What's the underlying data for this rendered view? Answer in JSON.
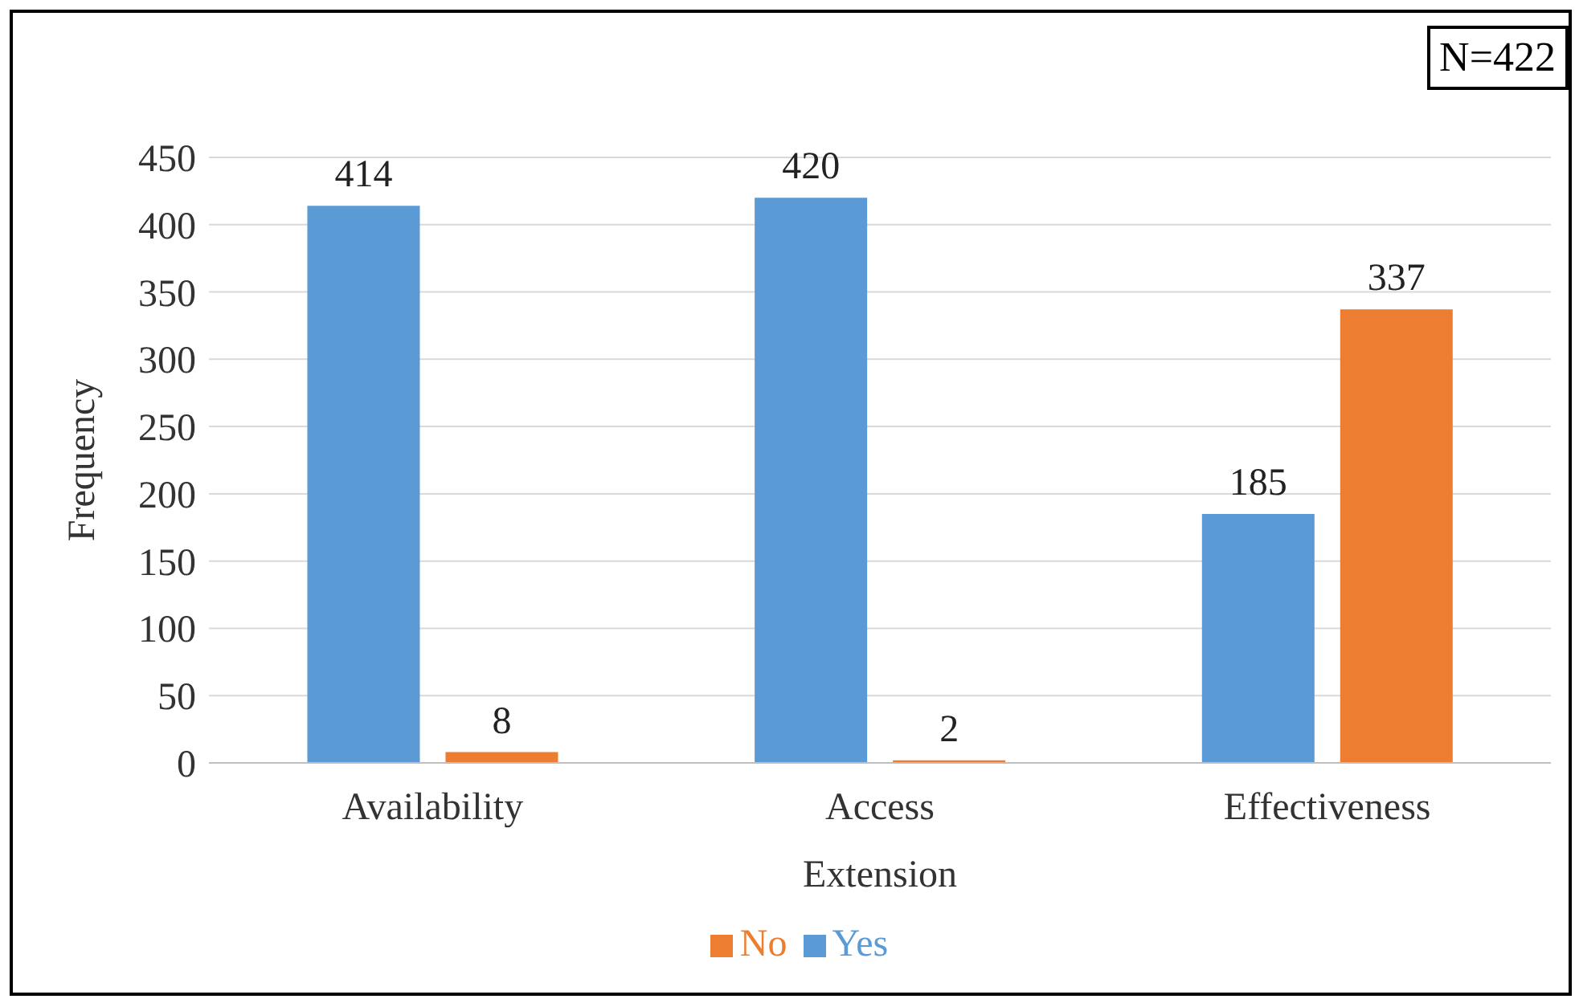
{
  "chart_data": {
    "type": "bar",
    "xlabel": "Extension",
    "ylabel": "Frequency",
    "categories": [
      "Availability",
      "Access",
      "Effectiveness"
    ],
    "series": [
      {
        "name": "Yes",
        "color": "#5b9bd5",
        "values": [
          414,
          420,
          185
        ]
      },
      {
        "name": "No",
        "color": "#ed7d31",
        "values": [
          8,
          2,
          337
        ]
      }
    ],
    "ylim": [
      0,
      450
    ],
    "yticks": [
      0,
      50,
      100,
      150,
      200,
      250,
      300,
      350,
      400,
      450
    ],
    "grid": "y",
    "legend": "bottom",
    "data_labels": true,
    "annotations": [
      "N=422"
    ]
  }
}
